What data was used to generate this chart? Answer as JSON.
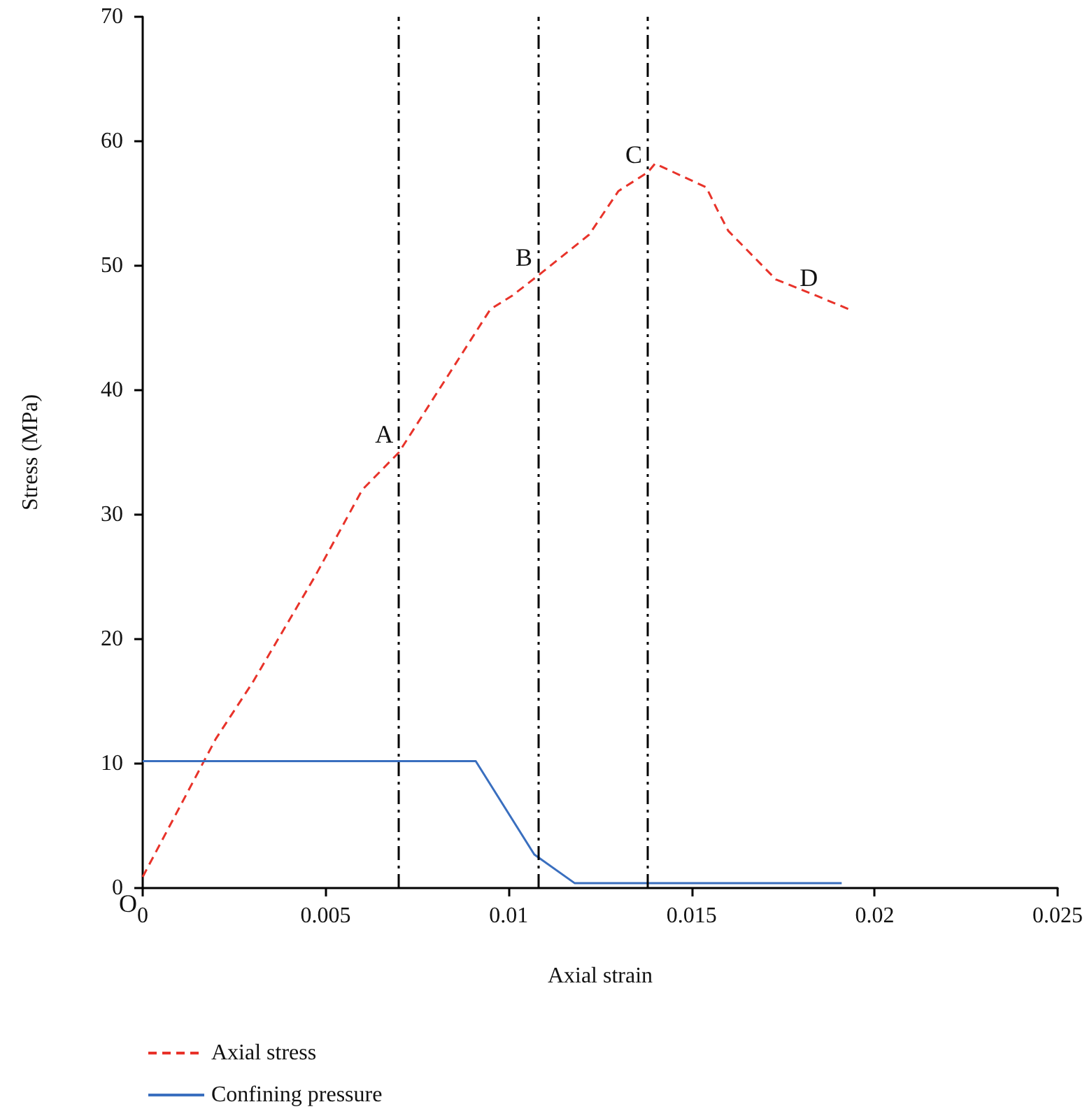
{
  "chart_data": {
    "type": "line",
    "xlabel": "Axial strain",
    "ylabel": "Stress (MPa)",
    "xlim": [
      0,
      0.025
    ],
    "xticks": [
      0,
      0.005,
      0.01,
      0.015,
      0.02,
      0.025
    ],
    "ylim": [
      0,
      70
    ],
    "yticks": [
      0,
      10,
      20,
      30,
      40,
      50,
      60,
      70
    ],
    "series": [
      {
        "name": "Axial stress",
        "color": "#e8332a",
        "line_style": "dashed",
        "x": [
          0,
          0.002,
          0.003,
          0.0047,
          0.006,
          0.007,
          0.0095,
          0.0101,
          0.0108,
          0.0122,
          0.013,
          0.0138,
          0.014,
          0.0154,
          0.0157,
          0.016,
          0.0173,
          0.0184,
          0.0193
        ],
        "values": [
          0.9,
          12,
          16.5,
          25,
          32,
          35,
          46.5,
          47.6,
          49.2,
          52.5,
          56,
          57.5,
          58.2,
          56.3,
          54.5,
          52.8,
          48.9,
          47.6,
          46.5
        ]
      },
      {
        "name": "Confining pressure",
        "color": "#3a6fbf",
        "line_style": "solid",
        "x": [
          0,
          0.0091,
          0.0107,
          0.0118,
          0.0191
        ],
        "values": [
          10.2,
          10.2,
          2.7,
          0.4,
          0.4
        ]
      }
    ],
    "ref_lines": [
      {
        "axis": "x",
        "value": 0.007,
        "color": "#000000",
        "line_style": "dashdot"
      },
      {
        "axis": "x",
        "value": 0.0108,
        "color": "#000000",
        "line_style": "dashdot"
      },
      {
        "axis": "x",
        "value": 0.0138,
        "color": "#000000",
        "line_style": "dashdot"
      }
    ],
    "annotations": [
      {
        "text": "A",
        "x": 0.007,
        "y": 35
      },
      {
        "text": "B",
        "x": 0.0108,
        "y": 49.2
      },
      {
        "text": "C",
        "x": 0.0138,
        "y": 57.5
      },
      {
        "text": "D",
        "x": 0.0186,
        "y": 47.6
      },
      "O"
    ],
    "grid": false,
    "legend": "bottom left",
    "marker": "none"
  }
}
